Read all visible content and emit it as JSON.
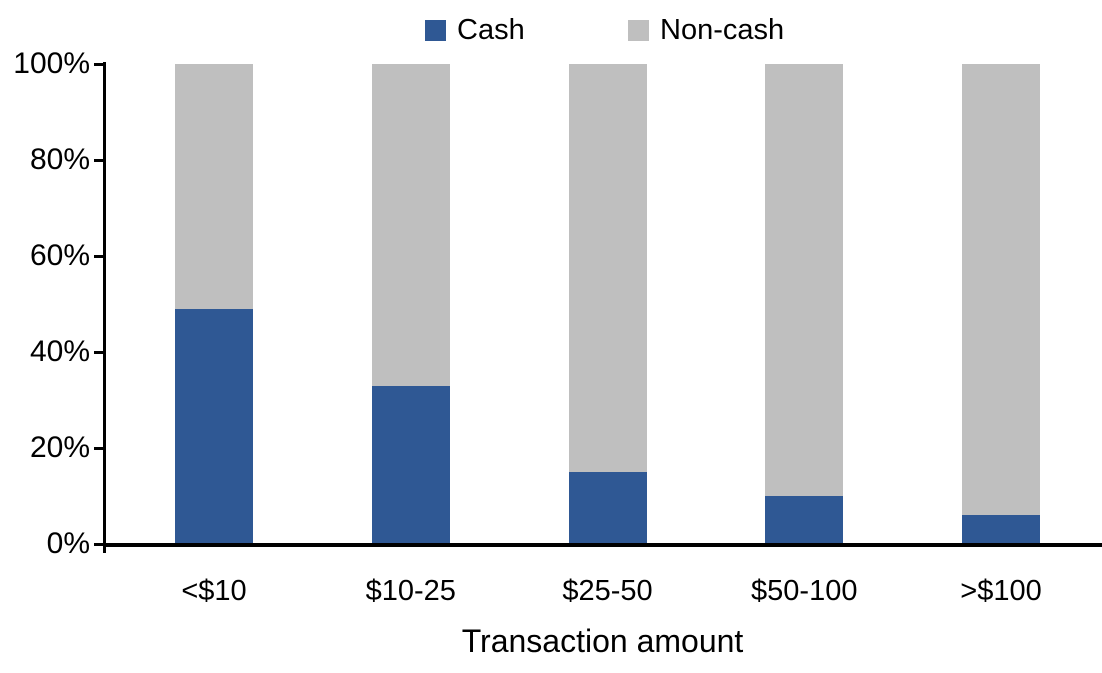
{
  "chart_data": {
    "type": "bar",
    "stacked": true,
    "percent_stacked": true,
    "title": "",
    "xlabel": "Transaction amount",
    "ylabel": "",
    "categories": [
      "<$10",
      "$10-25",
      "$25-50",
      "$50-100",
      ">$100"
    ],
    "series": [
      {
        "name": "Cash",
        "color": "#2F5894",
        "values": [
          49,
          33,
          15,
          10,
          6
        ]
      },
      {
        "name": "Non-cash",
        "color": "#BFBFBF",
        "values": [
          51,
          67,
          85,
          90,
          94
        ]
      }
    ],
    "ylim": [
      0,
      100
    ],
    "yticks": [
      "0%",
      "20%",
      "40%",
      "60%",
      "80%",
      "100%"
    ],
    "ytick_values": [
      0,
      20,
      40,
      60,
      80,
      100
    ],
    "grid": false,
    "legend_position": "top",
    "axis_color": "#000000",
    "text_color": "#000000",
    "background_color": "#FFFFFF"
  }
}
